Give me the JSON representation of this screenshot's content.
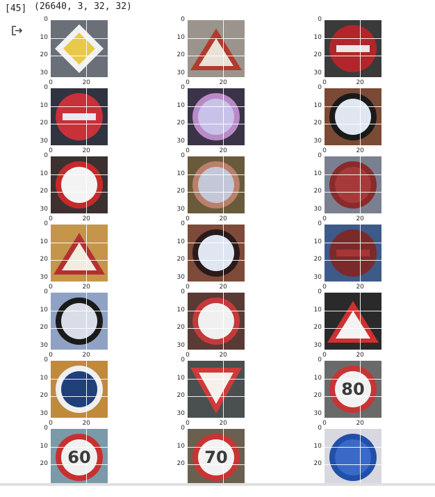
{
  "cell": {
    "execution_count": "[45]",
    "output_text": "(26640, 3, 32, 32)"
  },
  "axis": {
    "y_ticks": [
      "0",
      "10",
      "20",
      "30"
    ],
    "x_ticks": [
      "0",
      "20"
    ],
    "last_row_y_ticks": [
      "0",
      "10",
      "20"
    ]
  },
  "images": [
    {
      "desc": "yellow diamond priority road sign",
      "bg": "#6a6f78",
      "rim": "#f2f2f2",
      "fill": "#e9c94a",
      "shape": "diamond"
    },
    {
      "desc": "triangle warning sign, top cropped",
      "bg": "#9a948c",
      "rim": "#b23a2e",
      "fill": "#e9e2d6",
      "shape": "triangle"
    },
    {
      "desc": "no entry sign",
      "bg": "#3a3a3a",
      "rim": "#b0262a",
      "fill": "#e8e8e8",
      "shape": "noentry"
    },
    {
      "desc": "no entry sign",
      "bg": "#2f3440",
      "rim": "#c8303a",
      "fill": "#e8e8f0",
      "shape": "noentry"
    },
    {
      "desc": "blurred round sign",
      "bg": "#3b3448",
      "rim": "#b98ac8",
      "fill": "#c9c2e8",
      "shape": "circle"
    },
    {
      "desc": "end of restrictions round sign",
      "bg": "#7a4a35",
      "rim": "#1a1a1a",
      "fill": "#dfe6f0",
      "shape": "circle"
    },
    {
      "desc": "no overtaking sign",
      "bg": "#3c3030",
      "rim": "#c42a2a",
      "fill": "#f3f3f3",
      "shape": "circle"
    },
    {
      "desc": "blurred round sign",
      "bg": "#6a5a3c",
      "rim": "#b9806a",
      "fill": "#c3c7d8",
      "shape": "circle"
    },
    {
      "desc": "blurred no entry sign",
      "bg": "#7a8090",
      "rim": "#8a2a2a",
      "fill": "#a63a3a",
      "shape": "circle"
    },
    {
      "desc": "warning triangle sign",
      "bg": "#c4954a",
      "rim": "#b43030",
      "fill": "#f0ece0",
      "shape": "triangle"
    },
    {
      "desc": "end of restrictions round sign",
      "bg": "#7e4a3a",
      "rim": "#2a1a1a",
      "fill": "#dfe6f2",
      "shape": "circle"
    },
    {
      "desc": "no entry sign",
      "bg": "#3e5a88",
      "rim": "#7a2a2a",
      "fill": "#a83535",
      "shape": "noentry"
    },
    {
      "desc": "end of restrictions sign",
      "bg": "#8fa2c4",
      "rim": "#1a1a1a",
      "fill": "#d8dde8",
      "shape": "circle"
    },
    {
      "desc": "no overtaking sign",
      "bg": "#5a3a34",
      "rim": "#c43a3a",
      "fill": "#f0f0f0",
      "shape": "circle"
    },
    {
      "desc": "traffic signals warning sign",
      "bg": "#2a2a2a",
      "rim": "#d03030",
      "fill": "#f3f3f3",
      "shape": "triangle"
    },
    {
      "desc": "blue mandatory direction sign",
      "bg": "#c08a3a",
      "rim": "#f0f0f0",
      "fill": "#20407a",
      "shape": "circle"
    },
    {
      "desc": "yield sign",
      "bg": "#4a5050",
      "rim": "#d03a3a",
      "fill": "#f5f0ea",
      "shape": "yield"
    },
    {
      "desc": "speed limit 80 sign",
      "bg": "#6a6a6a",
      "rim": "#c83434",
      "fill": "#f2f2f2",
      "shape": "circle"
    },
    {
      "desc": "speed limit 60 sign",
      "bg": "#7a9aa8",
      "rim": "#c83030",
      "fill": "#f0f0f0",
      "shape": "circle"
    },
    {
      "desc": "speed limit 70 sign",
      "bg": "#6a6050",
      "rim": "#c83434",
      "fill": "#f2f2f2",
      "shape": "circle"
    },
    {
      "desc": "blue mandatory sign",
      "bg": "#d8d8e0",
      "rim": "#2050a8",
      "fill": "#3a6ac8",
      "shape": "circle"
    }
  ],
  "image_numbers": [
    {
      "row": 5,
      "col": 2,
      "text": "80"
    },
    {
      "row": 6,
      "col": 0,
      "text": "60"
    },
    {
      "row": 6,
      "col": 1,
      "text": "70"
    }
  ]
}
